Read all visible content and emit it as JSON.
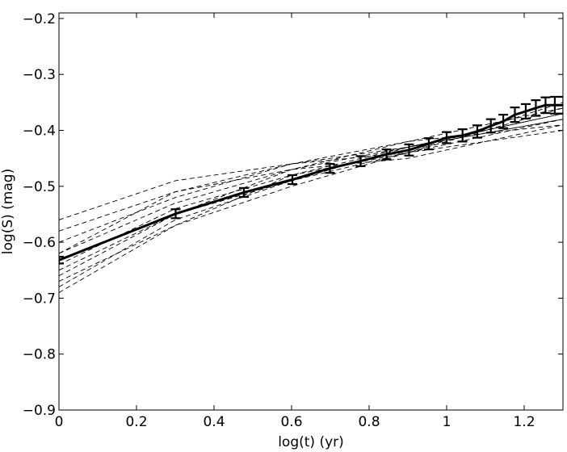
{
  "chart_data": {
    "type": "line",
    "title": "",
    "xlabel": "log(t) (yr)",
    "ylabel": "log(S) (mag)",
    "xlim": [
      0,
      1.3
    ],
    "ylim": [
      -0.9,
      -0.19
    ],
    "xticks": [
      0,
      0.2,
      0.4,
      0.6,
      0.8,
      1,
      1.2
    ],
    "xtick_labels": [
      "0",
      "0.2",
      "0.4",
      "0.6",
      "0.8",
      "1",
      "1.2"
    ],
    "yticks": [
      -0.9,
      -0.8,
      -0.7,
      -0.6,
      -0.5,
      -0.4,
      -0.3,
      -0.2
    ],
    "ytick_labels": [
      "−0.9",
      "−0.8",
      "−0.7",
      "−0.6",
      "−0.5",
      "−0.4",
      "−0.3",
      "−0.2"
    ],
    "grid": false,
    "legend": false,
    "series": [
      {
        "style": "solid-with-errorbars",
        "color": "#000000",
        "x": [
          0.0,
          0.301,
          0.477,
          0.602,
          0.699,
          0.778,
          0.845,
          0.903,
          0.954,
          1.0,
          1.041,
          1.079,
          1.114,
          1.146,
          1.176,
          1.204,
          1.23,
          1.255,
          1.279,
          1.301
        ],
        "y": [
          -0.632,
          -0.549,
          -0.511,
          -0.488,
          -0.468,
          -0.455,
          -0.443,
          -0.435,
          -0.424,
          -0.413,
          -0.409,
          -0.402,
          -0.392,
          -0.384,
          -0.372,
          -0.366,
          -0.36,
          -0.355,
          -0.355,
          -0.355
        ],
        "err": [
          0.006,
          0.008,
          0.008,
          0.008,
          0.008,
          0.009,
          0.009,
          0.01,
          0.01,
          0.01,
          0.011,
          0.011,
          0.012,
          0.012,
          0.013,
          0.013,
          0.014,
          0.014,
          0.015,
          0.015
        ]
      },
      {
        "style": "dashed",
        "color": "#000000",
        "x": [
          0,
          0.3,
          0.6,
          0.9,
          1.3
        ],
        "y": [
          -0.56,
          -0.49,
          -0.46,
          -0.44,
          -0.4
        ]
      },
      {
        "style": "dashed",
        "color": "#000000",
        "x": [
          0,
          0.3,
          0.6,
          0.9,
          1.3
        ],
        "y": [
          -0.58,
          -0.51,
          -0.47,
          -0.45,
          -0.39
        ]
      },
      {
        "style": "dashed",
        "color": "#000000",
        "x": [
          0,
          0.3,
          0.6,
          0.9,
          1.3
        ],
        "y": [
          -0.6,
          -0.52,
          -0.46,
          -0.43,
          -0.38
        ]
      },
      {
        "style": "dashed",
        "color": "#000000",
        "x": [
          0,
          0.3,
          0.6,
          0.9,
          1.3
        ],
        "y": [
          -0.62,
          -0.53,
          -0.47,
          -0.43,
          -0.37
        ]
      },
      {
        "style": "dashed",
        "color": "#000000",
        "x": [
          0,
          0.3,
          0.6,
          0.9,
          1.3
        ],
        "y": [
          -0.64,
          -0.54,
          -0.48,
          -0.44,
          -0.36
        ]
      },
      {
        "style": "dashed",
        "color": "#000000",
        "x": [
          0,
          0.3,
          0.6,
          0.9,
          1.3
        ],
        "y": [
          -0.66,
          -0.55,
          -0.49,
          -0.44,
          -0.35
        ]
      },
      {
        "style": "dashed",
        "color": "#000000",
        "x": [
          0,
          0.3,
          0.6,
          0.9,
          1.3
        ],
        "y": [
          -0.68,
          -0.56,
          -0.49,
          -0.43,
          -0.37
        ]
      },
      {
        "style": "dashed",
        "color": "#000000",
        "x": [
          0,
          0.3,
          0.6,
          0.9,
          1.3
        ],
        "y": [
          -0.69,
          -0.57,
          -0.5,
          -0.44,
          -0.38
        ]
      },
      {
        "style": "dashed",
        "color": "#000000",
        "x": [
          0,
          0.3,
          0.6,
          0.9,
          1.3
        ],
        "y": [
          -0.62,
          -0.51,
          -0.46,
          -0.42,
          -0.39
        ]
      },
      {
        "style": "dashed",
        "color": "#000000",
        "x": [
          0,
          0.3,
          0.6,
          0.9,
          1.3
        ],
        "y": [
          -0.65,
          -0.55,
          -0.47,
          -0.42,
          -0.36
        ]
      },
      {
        "style": "dashed",
        "color": "#000000",
        "x": [
          0,
          0.3,
          0.6,
          0.9,
          1.3
        ],
        "y": [
          -0.67,
          -0.57,
          -0.48,
          -0.43,
          -0.38
        ]
      }
    ]
  }
}
